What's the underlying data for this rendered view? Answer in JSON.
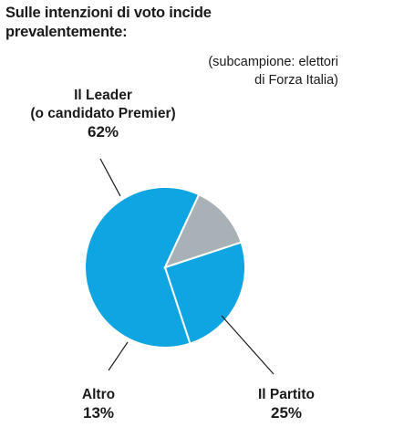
{
  "chart_data": {
    "type": "pie",
    "title": "Sulle intenzioni di voto incide prevalentemente:",
    "subtitle": [
      "(subcampione: elettori",
      "di Forza Italia)"
    ],
    "slices": [
      {
        "label_lines": [
          "Il Leader",
          "(o candidato Premier)"
        ],
        "value": 62,
        "value_label": "62%",
        "color": "#0ea5e2"
      },
      {
        "label_lines": [
          "Il Partito"
        ],
        "value": 25,
        "value_label": "25%",
        "color": "#0ea5e2"
      },
      {
        "label_lines": [
          "Altro"
        ],
        "value": 13,
        "value_label": "13%",
        "color": "#a7b1b6"
      }
    ],
    "start_angle_deg": 65,
    "slice_edge_color": "#ffffff"
  }
}
